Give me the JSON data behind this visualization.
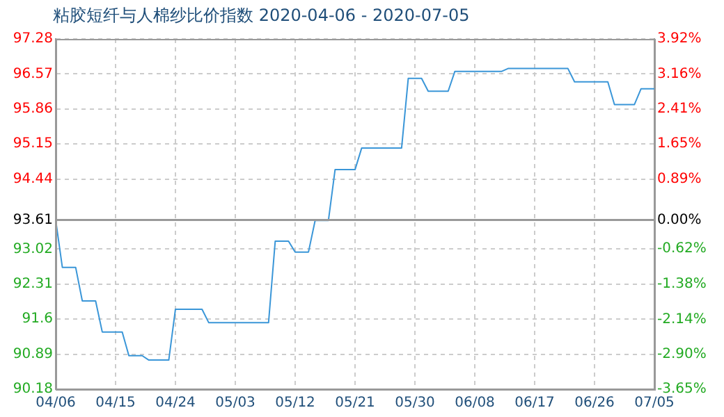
{
  "chart_data": {
    "type": "line",
    "title": "粘胶短纤与人棉纱比价指数 2020-04-06 - 2020-07-05",
    "x": [
      "2020-04-06",
      "2020-04-07",
      "2020-04-09",
      "2020-04-10",
      "2020-04-12",
      "2020-04-13",
      "2020-04-16",
      "2020-04-17",
      "2020-04-19",
      "2020-04-20",
      "2020-04-23",
      "2020-04-24",
      "2020-04-28",
      "2020-04-29",
      "2020-05-08",
      "2020-05-09",
      "2020-05-11",
      "2020-05-12",
      "2020-05-14",
      "2020-05-15",
      "2020-05-17",
      "2020-05-18",
      "2020-05-21",
      "2020-05-22",
      "2020-05-28",
      "2020-05-29",
      "2020-05-31",
      "2020-06-01",
      "2020-06-04",
      "2020-06-05",
      "2020-06-12",
      "2020-06-13",
      "2020-06-22",
      "2020-06-23",
      "2020-06-28",
      "2020-06-29",
      "2020-07-02",
      "2020-07-03",
      "2020-07-05"
    ],
    "series": [
      {
        "color": "#3a96d8",
        "axis": "y",
        "values": [
          93.61,
          92.65,
          92.65,
          91.97,
          91.97,
          91.34,
          91.34,
          90.86,
          90.86,
          90.77,
          90.77,
          91.8,
          91.8,
          91.53,
          91.53,
          93.18,
          93.18,
          92.96,
          92.96,
          93.6,
          93.6,
          94.63,
          94.63,
          95.07,
          95.07,
          96.48,
          96.48,
          96.22,
          96.22,
          96.62,
          96.62,
          96.68,
          96.68,
          96.41,
          96.41,
          95.95,
          95.95,
          96.27,
          96.27
        ]
      }
    ],
    "xlim": [
      "2020-04-06",
      "2020-07-05"
    ],
    "xticks": [
      {
        "value": "2020-04-06",
        "label": "04/06"
      },
      {
        "value": "2020-04-15",
        "label": "04/15"
      },
      {
        "value": "2020-04-24",
        "label": "04/24"
      },
      {
        "value": "2020-05-03",
        "label": "05/03"
      },
      {
        "value": "2020-05-12",
        "label": "05/12"
      },
      {
        "value": "2020-05-21",
        "label": "05/21"
      },
      {
        "value": "2020-05-30",
        "label": "05/30"
      },
      {
        "value": "2020-06-08",
        "label": "06/08"
      },
      {
        "value": "2020-06-17",
        "label": "06/17"
      },
      {
        "value": "2020-06-26",
        "label": "06/26"
      },
      {
        "value": "2020-07-05",
        "label": "07/05"
      }
    ],
    "ylim": [
      90.18,
      97.28
    ],
    "yticks": [
      90.18,
      90.89,
      91.6,
      92.31,
      93.02,
      93.61,
      94.44,
      95.15,
      95.86,
      96.57,
      97.28
    ],
    "y2lim": [
      -3.65,
      3.92
    ],
    "y2ticks": [
      {
        "value": -3.65,
        "label": "-3.65%"
      },
      {
        "value": -2.9,
        "label": "-2.90%"
      },
      {
        "value": -2.14,
        "label": "-2.14%"
      },
      {
        "value": -1.38,
        "label": "-1.38%"
      },
      {
        "value": -0.62,
        "label": "-0.62%"
      },
      {
        "value": 0,
        "label": "0.00%"
      },
      {
        "value": 0.89,
        "label": "0.89%"
      },
      {
        "value": 1.65,
        "label": "1.65%"
      },
      {
        "value": 2.41,
        "label": "2.41%"
      },
      {
        "value": 3.16,
        "label": "3.16%"
      },
      {
        "value": 3.92,
        "label": "3.92%"
      }
    ],
    "ref_lines": [
      {
        "axis": "y",
        "value": 93.61,
        "color": "#999999"
      }
    ],
    "grid": true,
    "legend": false,
    "marker": "none",
    "line_style": "solid"
  }
}
